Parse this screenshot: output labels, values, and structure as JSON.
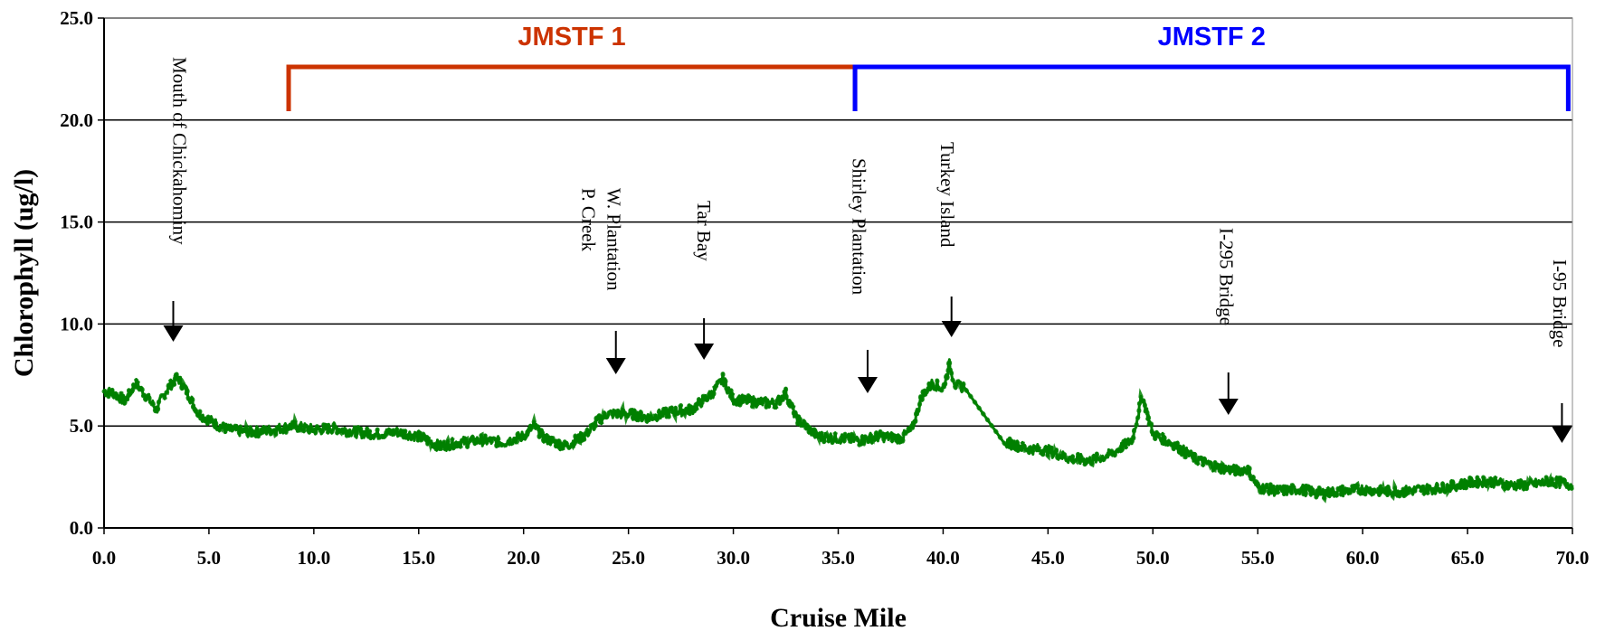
{
  "chart_data": {
    "type": "line",
    "title": "",
    "xlabel": "Cruise Mile",
    "ylabel": "Chlorophyll (ug/l)",
    "xlim": [
      0,
      70
    ],
    "ylim": [
      0,
      25
    ],
    "grid": "horizontal",
    "xticks": [
      "0.0",
      "5.0",
      "10.0",
      "15.0",
      "20.0",
      "25.0",
      "30.0",
      "35.0",
      "40.0",
      "45.0",
      "50.0",
      "55.0",
      "60.0",
      "65.0",
      "70.0"
    ],
    "yticks": [
      "0.0",
      "5.0",
      "10.0",
      "15.0",
      "20.0",
      "25.0"
    ],
    "series": [
      {
        "color": "#008000",
        "x": [
          0,
          0.5,
          1.0,
          1.5,
          2.0,
          2.5,
          3.0,
          3.5,
          4.0,
          4.5,
          5.0,
          5.5,
          6.0,
          7.0,
          8.0,
          9.0,
          10.0,
          11.0,
          12.0,
          13.0,
          14.0,
          15.0,
          16.0,
          17.0,
          18.0,
          19.0,
          20.0,
          20.5,
          21.0,
          22.0,
          22.5,
          23.0,
          23.5,
          24.0,
          25.0,
          26.0,
          27.0,
          28.0,
          29.0,
          29.5,
          30.0,
          31.0,
          32.0,
          32.5,
          33.0,
          34.0,
          35.0,
          36.0,
          37.0,
          38.0,
          38.5,
          39.0,
          39.5,
          40.0,
          40.3,
          40.6,
          41.0,
          43.0,
          44.0,
          45.0,
          46.0,
          47.0,
          48.0,
          49.0,
          49.5,
          50.0,
          51.0,
          52.0,
          53.0,
          54.0,
          54.5,
          55.0,
          56.0,
          57.0,
          58.0,
          59.0,
          60.0,
          61.0,
          62.0,
          63.0,
          64.0,
          65.0,
          66.0,
          67.0,
          68.0,
          69.0,
          70.0
        ],
        "y": [
          6.7,
          6.6,
          6.2,
          7.1,
          6.5,
          5.8,
          6.8,
          7.4,
          6.6,
          5.6,
          5.3,
          5.0,
          4.8,
          4.7,
          4.8,
          5.0,
          4.8,
          4.9,
          4.7,
          4.6,
          4.7,
          4.5,
          4.0,
          4.2,
          4.3,
          4.2,
          4.5,
          5.0,
          4.4,
          4.0,
          4.3,
          4.6,
          5.2,
          5.6,
          5.6,
          5.4,
          5.7,
          5.8,
          6.6,
          7.3,
          6.3,
          6.2,
          6.1,
          6.6,
          5.4,
          4.5,
          4.4,
          4.3,
          4.5,
          4.4,
          4.8,
          6.5,
          7.1,
          6.8,
          8.0,
          7.0,
          6.9,
          4.2,
          3.9,
          3.8,
          3.4,
          3.3,
          3.6,
          4.3,
          6.5,
          4.6,
          4.1,
          3.4,
          3.0,
          2.8,
          2.9,
          2.0,
          1.8,
          1.9,
          1.7,
          1.8,
          1.9,
          1.8,
          1.8,
          1.9,
          2.0,
          2.2,
          2.3,
          2.1,
          2.1,
          2.3,
          2.1
        ]
      }
    ],
    "annotations": [
      {
        "label": "Mouth of Chickahominy",
        "x": 3.3
      },
      {
        "label": "W. Plantation",
        "x": 24.4
      },
      {
        "label": "P. Creek",
        "x": 24.4
      },
      {
        "label": "Tar Bay",
        "x": 28.6
      },
      {
        "label": "Shirley Plantation",
        "x": 36.4
      },
      {
        "label": "Turkey Island",
        "x": 40.4
      },
      {
        "label": "I-295 Bridge",
        "x": 53.6
      },
      {
        "label": "I-95 Bridge",
        "x": 69.5
      }
    ],
    "brackets": [
      {
        "label": "JMSTF 1",
        "x_start": 8.8,
        "x_end": 35.8,
        "color": "#cc3300"
      },
      {
        "label": "JMSTF 2",
        "x_start": 35.8,
        "x_end": 69.8,
        "color": "#0000ff"
      }
    ]
  }
}
